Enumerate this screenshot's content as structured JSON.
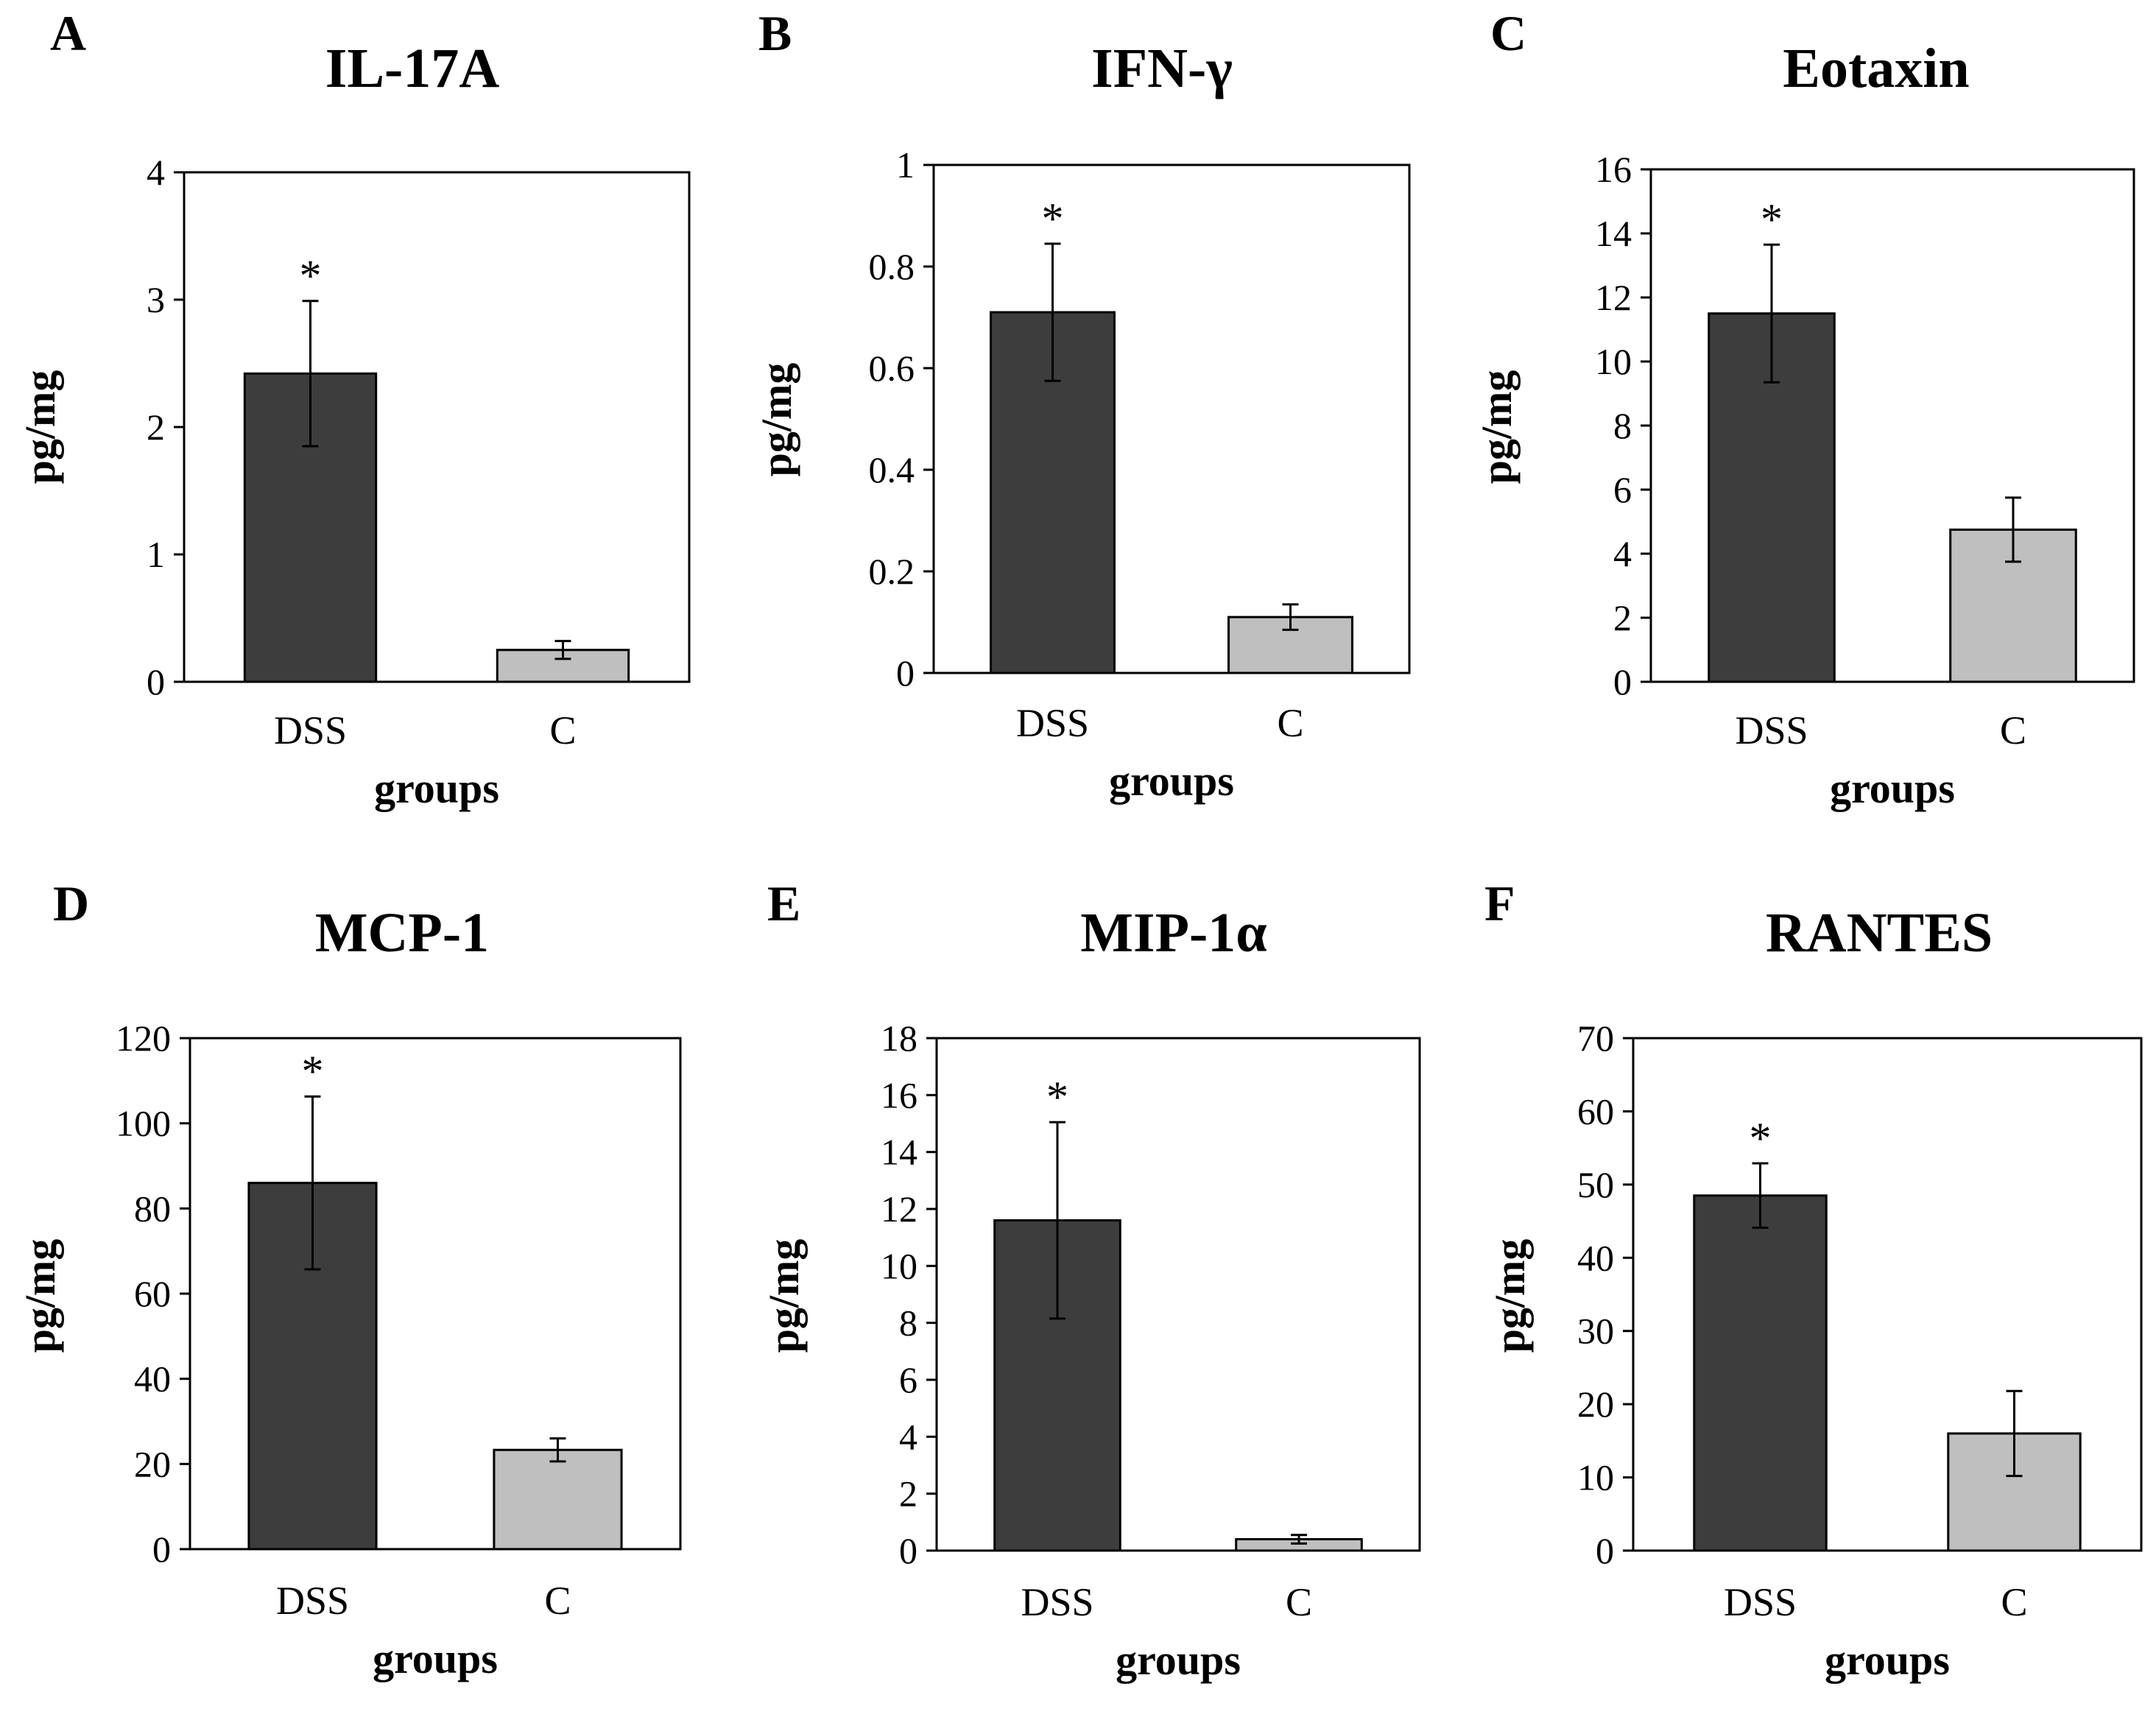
{
  "figure": {
    "panels": [
      {
        "letter": "A"
      },
      {
        "letter": "B"
      },
      {
        "letter": "C"
      },
      {
        "letter": "D"
      },
      {
        "letter": "E"
      },
      {
        "letter": "F"
      }
    ]
  },
  "colors": {
    "dss_bar": "#3d3d3d",
    "c_bar": "#bfbfbf",
    "axis": "#000000"
  },
  "chart_data": [
    {
      "type": "bar",
      "title": "IL-17A",
      "xlabel": "groups",
      "ylabel": "pg/mg",
      "categories": [
        "DSS",
        "C"
      ],
      "values": [
        2.42,
        0.25
      ],
      "errors": [
        0.57,
        0.07
      ],
      "significance": [
        "*",
        ""
      ],
      "ylim": [
        0,
        4
      ],
      "yticks": [
        "0",
        "1",
        "2",
        "3",
        "4"
      ],
      "grid": false,
      "legend": "none"
    },
    {
      "type": "bar",
      "title": "IFN-γ",
      "xlabel": "groups",
      "ylabel": "pg/mg",
      "categories": [
        "DSS",
        "C"
      ],
      "values": [
        0.71,
        0.11
      ],
      "errors": [
        0.135,
        0.025
      ],
      "significance": [
        "*",
        ""
      ],
      "ylim": [
        0,
        1
      ],
      "yticks": [
        "0",
        "0.2",
        "0.4",
        "0.6",
        "0.8",
        "1"
      ],
      "grid": false,
      "legend": "none"
    },
    {
      "type": "bar",
      "title": "Eotaxin",
      "xlabel": "groups",
      "ylabel": "pg/mg",
      "categories": [
        "DSS",
        "C"
      ],
      "values": [
        11.5,
        4.75
      ],
      "errors": [
        2.15,
        1.0
      ],
      "significance": [
        "*",
        ""
      ],
      "ylim": [
        0,
        16
      ],
      "yticks": [
        "0",
        "2",
        "4",
        "6",
        "8",
        "10",
        "12",
        "14",
        "16"
      ],
      "grid": false,
      "legend": "none"
    },
    {
      "type": "bar",
      "title": "MCP-1",
      "xlabel": "groups",
      "ylabel": "pg/mg",
      "categories": [
        "DSS",
        "C"
      ],
      "values": [
        86,
        23.3
      ],
      "errors": [
        20.3,
        2.7
      ],
      "significance": [
        "*",
        ""
      ],
      "ylim": [
        0,
        120
      ],
      "yticks": [
        "0",
        "20",
        "40",
        "60",
        "80",
        "100",
        "120"
      ],
      "grid": false,
      "legend": "none"
    },
    {
      "type": "bar",
      "title": "MIP-1α",
      "xlabel": "groups",
      "ylabel": "pg/mg",
      "categories": [
        "DSS",
        "C"
      ],
      "values": [
        11.6,
        0.4
      ],
      "errors": [
        3.45,
        0.15
      ],
      "significance": [
        "*",
        ""
      ],
      "ylim": [
        0,
        18
      ],
      "yticks": [
        "0",
        "2",
        "4",
        "6",
        "8",
        "10",
        "12",
        "14",
        "16",
        "18"
      ],
      "grid": false,
      "legend": "none"
    },
    {
      "type": "bar",
      "title": "RANTES",
      "xlabel": "groups",
      "ylabel": "pg/mg",
      "categories": [
        "DSS",
        "C"
      ],
      "values": [
        48.5,
        16
      ],
      "errors": [
        4.4,
        5.8
      ],
      "significance": [
        "*",
        ""
      ],
      "ylim": [
        0,
        70
      ],
      "yticks": [
        "0",
        "10",
        "20",
        "30",
        "40",
        "50",
        "60",
        "70"
      ],
      "grid": false,
      "legend": "none"
    }
  ]
}
